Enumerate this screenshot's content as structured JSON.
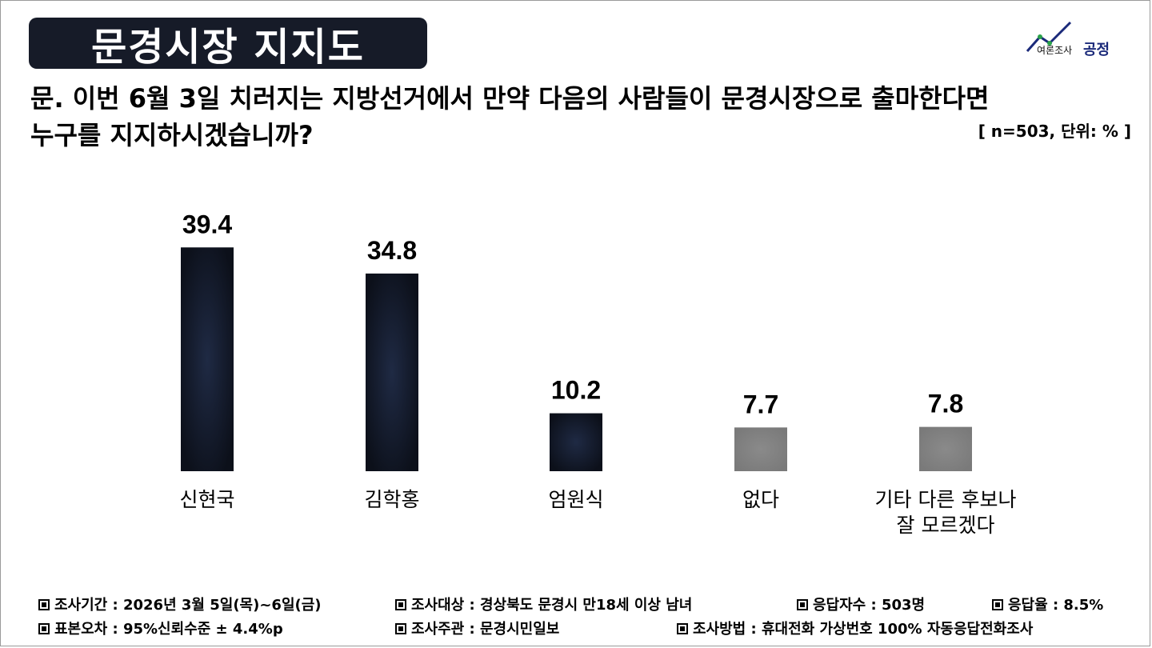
{
  "header": {
    "title": "문경시장 지지도",
    "logo_tagline": "여론조사",
    "logo_name": "공정"
  },
  "question": {
    "line1": "문. 이번 6월 3일 치러지는 지방선거에서 만약 다음의 사람들이 문경시장으로 출마한다면",
    "line2": "누구를 지지하시겠습니까?",
    "sample_unit": "[ n=503, 단위: % ]"
  },
  "chart_data": {
    "type": "bar",
    "categories": [
      "신현국",
      "김학홍",
      "엄원식",
      "없다",
      "기타 다른 후보나\n잘 모르겠다"
    ],
    "values": [
      39.4,
      34.8,
      10.2,
      7.7,
      7.8
    ],
    "value_labels": [
      "39.4",
      "34.8",
      "10.2",
      "7.7",
      "7.8"
    ],
    "bar_colors": [
      "#141a29",
      "#141a29",
      "#141a29",
      "#8c8c8c",
      "#8c8c8c"
    ],
    "title": "",
    "xlabel": "",
    "ylabel": "",
    "ylim": [
      0,
      40
    ],
    "grid": false,
    "legend": "none"
  },
  "footer": {
    "row1": [
      "조사기간 : 2026년 3월 5일(목)~6일(금)",
      "조사대상 : 경상북도 문경시 만18세 이상 남녀",
      "응답자수 : 503명",
      "응답율 : 8.5%"
    ],
    "row2": [
      "표본오차 : 95%신뢰수준 ± 4.4%p",
      "조사주관 : 문경시민일보",
      "조사방법 : 휴대전화 가상번호 100% 자동응답전화조사"
    ]
  },
  "colors": {
    "title_bg": "#161b28",
    "bar_dark": "#141a29",
    "bar_gray": "#8c8c8c",
    "logo_accent": "#1b2a7a"
  }
}
